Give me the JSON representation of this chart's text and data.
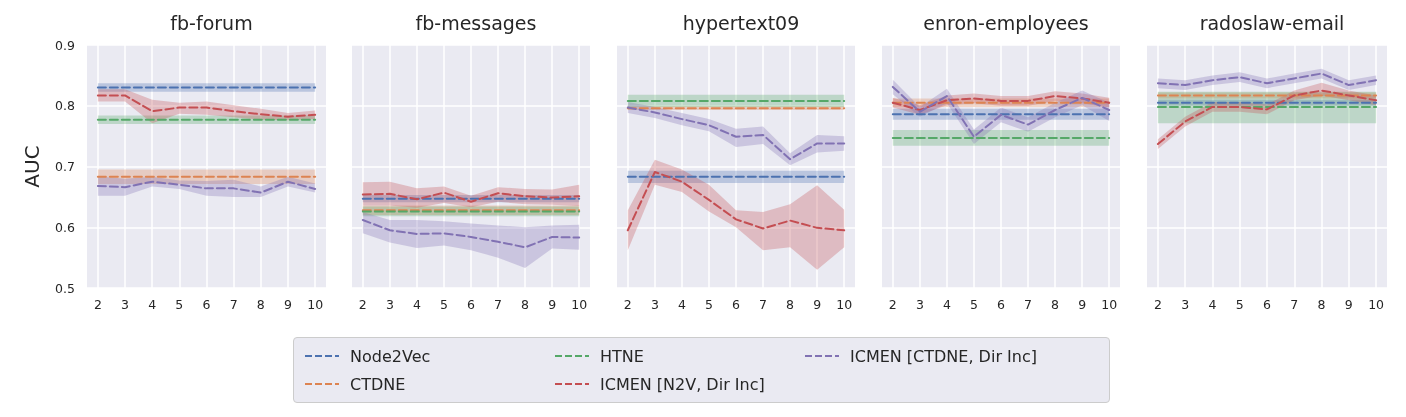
{
  "chart_data": [
    {
      "type": "line",
      "title": "fb-forum",
      "ylabel": "AUC",
      "x": [
        2,
        3,
        4,
        5,
        6,
        7,
        8,
        9,
        10
      ],
      "xlim": [
        1.6,
        10.4
      ],
      "xticks": [
        2,
        3,
        4,
        5,
        6,
        7,
        8,
        9,
        10
      ],
      "ylim": [
        0.5,
        0.9
      ],
      "yticks": [
        0.5,
        0.6,
        0.7,
        0.8,
        0.9
      ],
      "grid": true,
      "line_style": "dashed",
      "legend": "bottom",
      "series": [
        {
          "name": "Node2Vec",
          "color": "#4c72b0",
          "values": [
            0.83,
            0.83,
            0.83,
            0.83,
            0.83,
            0.83,
            0.83,
            0.83,
            0.83
          ],
          "lower": [
            0.823,
            0.823,
            0.823,
            0.823,
            0.823,
            0.823,
            0.823,
            0.823,
            0.823
          ],
          "upper": [
            0.837,
            0.837,
            0.837,
            0.837,
            0.837,
            0.837,
            0.837,
            0.837,
            0.837
          ]
        },
        {
          "name": "CTDNE",
          "color": "#dd8452",
          "values": [
            0.683,
            0.683,
            0.683,
            0.683,
            0.683,
            0.683,
            0.683,
            0.683,
            0.683
          ],
          "lower": [
            0.671,
            0.671,
            0.671,
            0.671,
            0.671,
            0.671,
            0.671,
            0.671,
            0.671
          ],
          "upper": [
            0.695,
            0.695,
            0.695,
            0.695,
            0.695,
            0.695,
            0.695,
            0.695,
            0.695
          ]
        },
        {
          "name": "HTNE",
          "color": "#55a868",
          "values": [
            0.777,
            0.777,
            0.777,
            0.777,
            0.777,
            0.777,
            0.777,
            0.777,
            0.777
          ],
          "lower": [
            0.77,
            0.77,
            0.77,
            0.77,
            0.77,
            0.77,
            0.77,
            0.77,
            0.77
          ],
          "upper": [
            0.784,
            0.784,
            0.784,
            0.784,
            0.784,
            0.784,
            0.784,
            0.784,
            0.784
          ]
        },
        {
          "name": "ICMEN [N2V, Dir Inc]",
          "color": "#c44e52",
          "values": [
            0.817,
            0.817,
            0.791,
            0.797,
            0.797,
            0.791,
            0.786,
            0.782,
            0.785
          ],
          "lower": [
            0.807,
            0.807,
            0.771,
            0.787,
            0.785,
            0.781,
            0.777,
            0.776,
            0.778
          ],
          "upper": [
            0.827,
            0.827,
            0.81,
            0.805,
            0.807,
            0.801,
            0.795,
            0.788,
            0.792
          ]
        },
        {
          "name": "ICMEN [CTDNE, Dir Inc]",
          "color": "#8172b3",
          "values": [
            0.668,
            0.666,
            0.675,
            0.67,
            0.664,
            0.664,
            0.657,
            0.675,
            0.663
          ],
          "lower": [
            0.652,
            0.652,
            0.667,
            0.663,
            0.652,
            0.65,
            0.65,
            0.667,
            0.657
          ],
          "upper": [
            0.684,
            0.68,
            0.683,
            0.677,
            0.676,
            0.678,
            0.667,
            0.683,
            0.672
          ]
        }
      ]
    },
    {
      "type": "line",
      "title": "fb-messages",
      "x": [
        2,
        3,
        4,
        5,
        6,
        7,
        8,
        9,
        10
      ],
      "xlim": [
        1.6,
        10.4
      ],
      "xticks": [
        2,
        3,
        4,
        5,
        6,
        7,
        8,
        9,
        10
      ],
      "ylim": [
        0.5,
        0.9
      ],
      "yticks": [
        0.5,
        0.6,
        0.7,
        0.8,
        0.9
      ],
      "tick_labels": "x",
      "grid": true,
      "line_style": "dashed",
      "series": [
        {
          "color": "#4c72b0",
          "values": [
            0.647,
            0.647,
            0.647,
            0.647,
            0.647,
            0.647,
            0.647,
            0.647,
            0.647
          ],
          "lower": [
            0.641,
            0.641,
            0.641,
            0.641,
            0.641,
            0.641,
            0.641,
            0.641,
            0.641
          ],
          "upper": [
            0.653,
            0.653,
            0.653,
            0.653,
            0.653,
            0.653,
            0.653,
            0.653,
            0.653
          ]
        },
        {
          "color": "#dd8452",
          "values": [
            0.628,
            0.628,
            0.628,
            0.628,
            0.628,
            0.628,
            0.628,
            0.628,
            0.628
          ],
          "lower": [
            0.62,
            0.62,
            0.62,
            0.62,
            0.62,
            0.62,
            0.62,
            0.62,
            0.62
          ],
          "upper": [
            0.636,
            0.636,
            0.636,
            0.636,
            0.636,
            0.636,
            0.636,
            0.636,
            0.636
          ]
        },
        {
          "color": "#55a868",
          "values": [
            0.626,
            0.626,
            0.626,
            0.626,
            0.626,
            0.626,
            0.626,
            0.626,
            0.626
          ],
          "lower": [
            0.618,
            0.618,
            0.618,
            0.618,
            0.618,
            0.618,
            0.618,
            0.618,
            0.618
          ],
          "upper": [
            0.634,
            0.634,
            0.634,
            0.634,
            0.634,
            0.634,
            0.634,
            0.634,
            0.634
          ]
        },
        {
          "color": "#c44e52",
          "values": [
            0.654,
            0.655,
            0.646,
            0.657,
            0.642,
            0.656,
            0.651,
            0.649,
            0.651
          ],
          "lower": [
            0.636,
            0.636,
            0.632,
            0.64,
            0.633,
            0.642,
            0.638,
            0.637,
            0.635
          ],
          "upper": [
            0.674,
            0.675,
            0.664,
            0.667,
            0.652,
            0.666,
            0.663,
            0.662,
            0.67
          ]
        },
        {
          "color": "#8172b3",
          "values": [
            0.612,
            0.595,
            0.589,
            0.59,
            0.584,
            0.576,
            0.567,
            0.584,
            0.583
          ],
          "lower": [
            0.59,
            0.575,
            0.566,
            0.57,
            0.562,
            0.55,
            0.533,
            0.565,
            0.563
          ],
          "upper": [
            0.625,
            0.612,
            0.612,
            0.61,
            0.606,
            0.603,
            0.6,
            0.603,
            0.604
          ]
        }
      ]
    },
    {
      "type": "line",
      "title": "hypertext09",
      "x": [
        2,
        3,
        4,
        5,
        6,
        7,
        8,
        9,
        10
      ],
      "xlim": [
        1.6,
        10.4
      ],
      "xticks": [
        2,
        3,
        4,
        5,
        6,
        7,
        8,
        9,
        10
      ],
      "ylim": [
        0.5,
        0.9
      ],
      "yticks": [
        0.5,
        0.6,
        0.7,
        0.8,
        0.9
      ],
      "tick_labels": "x",
      "grid": true,
      "line_style": "dashed",
      "series": [
        {
          "color": "#4c72b0",
          "values": [
            0.683,
            0.683,
            0.683,
            0.683,
            0.683,
            0.683,
            0.683,
            0.683,
            0.683
          ],
          "lower": [
            0.673,
            0.673,
            0.673,
            0.673,
            0.673,
            0.673,
            0.673,
            0.673,
            0.673
          ],
          "upper": [
            0.693,
            0.693,
            0.693,
            0.693,
            0.693,
            0.693,
            0.693,
            0.693,
            0.693
          ]
        },
        {
          "color": "#dd8452",
          "values": [
            0.796,
            0.796,
            0.796,
            0.796,
            0.796,
            0.796,
            0.796,
            0.796,
            0.796
          ],
          "lower": [
            0.793,
            0.793,
            0.793,
            0.793,
            0.793,
            0.793,
            0.793,
            0.793,
            0.793
          ],
          "upper": [
            0.799,
            0.799,
            0.799,
            0.799,
            0.799,
            0.799,
            0.799,
            0.799,
            0.799
          ]
        },
        {
          "color": "#55a868",
          "values": [
            0.808,
            0.808,
            0.808,
            0.808,
            0.808,
            0.808,
            0.808,
            0.808,
            0.808
          ],
          "lower": [
            0.798,
            0.798,
            0.798,
            0.798,
            0.798,
            0.798,
            0.798,
            0.798,
            0.798
          ],
          "upper": [
            0.818,
            0.818,
            0.818,
            0.818,
            0.818,
            0.818,
            0.818,
            0.818,
            0.818
          ]
        },
        {
          "color": "#c44e52",
          "values": [
            0.595,
            0.691,
            0.675,
            0.645,
            0.613,
            0.598,
            0.611,
            0.599,
            0.595
          ],
          "lower": [
            0.562,
            0.67,
            0.658,
            0.626,
            0.6,
            0.562,
            0.567,
            0.53,
            0.567
          ],
          "upper": [
            0.628,
            0.711,
            0.695,
            0.67,
            0.628,
            0.625,
            0.638,
            0.669,
            0.629
          ]
        },
        {
          "color": "#8172b3",
          "values": [
            0.797,
            0.789,
            0.778,
            0.768,
            0.749,
            0.752,
            0.712,
            0.738,
            0.738
          ],
          "lower": [
            0.788,
            0.78,
            0.768,
            0.758,
            0.732,
            0.737,
            0.702,
            0.723,
            0.726
          ],
          "upper": [
            0.806,
            0.798,
            0.788,
            0.778,
            0.762,
            0.766,
            0.722,
            0.752,
            0.75
          ]
        }
      ]
    },
    {
      "type": "line",
      "title": "enron-employees",
      "x": [
        2,
        3,
        4,
        5,
        6,
        7,
        8,
        9,
        10
      ],
      "xlim": [
        1.6,
        10.4
      ],
      "xticks": [
        2,
        3,
        4,
        5,
        6,
        7,
        8,
        9,
        10
      ],
      "ylim": [
        0.5,
        0.9
      ],
      "yticks": [
        0.5,
        0.6,
        0.7,
        0.8,
        0.9
      ],
      "tick_labels": "x",
      "grid": true,
      "line_style": "dashed",
      "series": [
        {
          "color": "#4c72b0",
          "values": [
            0.786,
            0.786,
            0.786,
            0.786,
            0.786,
            0.786,
            0.786,
            0.786,
            0.786
          ],
          "lower": [
            0.777,
            0.777,
            0.777,
            0.777,
            0.777,
            0.777,
            0.777,
            0.777,
            0.777
          ],
          "upper": [
            0.795,
            0.795,
            0.795,
            0.795,
            0.795,
            0.795,
            0.795,
            0.795,
            0.795
          ]
        },
        {
          "color": "#dd8452",
          "values": [
            0.805,
            0.805,
            0.805,
            0.805,
            0.805,
            0.805,
            0.805,
            0.805,
            0.805
          ],
          "lower": [
            0.798,
            0.798,
            0.798,
            0.798,
            0.798,
            0.798,
            0.798,
            0.798,
            0.798
          ],
          "upper": [
            0.812,
            0.812,
            0.812,
            0.812,
            0.812,
            0.812,
            0.812,
            0.812,
            0.812
          ]
        },
        {
          "color": "#55a868",
          "values": [
            0.747,
            0.747,
            0.747,
            0.747,
            0.747,
            0.747,
            0.747,
            0.747,
            0.747
          ],
          "lower": [
            0.734,
            0.734,
            0.734,
            0.734,
            0.734,
            0.734,
            0.734,
            0.734,
            0.734
          ],
          "upper": [
            0.76,
            0.76,
            0.76,
            0.76,
            0.76,
            0.76,
            0.76,
            0.76,
            0.76
          ]
        },
        {
          "color": "#c44e52",
          "values": [
            0.805,
            0.793,
            0.809,
            0.812,
            0.808,
            0.808,
            0.816,
            0.812,
            0.805
          ],
          "lower": [
            0.797,
            0.785,
            0.801,
            0.804,
            0.8,
            0.8,
            0.808,
            0.804,
            0.797
          ],
          "upper": [
            0.813,
            0.801,
            0.817,
            0.82,
            0.816,
            0.816,
            0.824,
            0.82,
            0.813
          ]
        },
        {
          "color": "#8172b3",
          "values": [
            0.831,
            0.79,
            0.816,
            0.749,
            0.785,
            0.769,
            0.793,
            0.813,
            0.793
          ],
          "lower": [
            0.819,
            0.782,
            0.804,
            0.737,
            0.773,
            0.757,
            0.781,
            0.801,
            0.775
          ],
          "upper": [
            0.843,
            0.798,
            0.828,
            0.761,
            0.797,
            0.781,
            0.805,
            0.825,
            0.805
          ]
        }
      ]
    },
    {
      "type": "line",
      "title": "radoslaw-email",
      "x": [
        2,
        3,
        4,
        5,
        6,
        7,
        8,
        9,
        10
      ],
      "xlim": [
        1.6,
        10.4
      ],
      "xticks": [
        2,
        3,
        4,
        5,
        6,
        7,
        8,
        9,
        10
      ],
      "ylim": [
        0.5,
        0.9
      ],
      "yticks": [
        0.5,
        0.6,
        0.7,
        0.8,
        0.9
      ],
      "tick_labels": "x",
      "grid": true,
      "line_style": "dashed",
      "series": [
        {
          "color": "#4c72b0",
          "values": [
            0.805,
            0.805,
            0.805,
            0.805,
            0.805,
            0.805,
            0.805,
            0.805,
            0.805
          ],
          "lower": [
            0.8,
            0.8,
            0.8,
            0.8,
            0.8,
            0.8,
            0.8,
            0.8,
            0.8
          ],
          "upper": [
            0.81,
            0.81,
            0.81,
            0.81,
            0.81,
            0.81,
            0.81,
            0.81,
            0.81
          ]
        },
        {
          "color": "#dd8452",
          "values": [
            0.817,
            0.817,
            0.817,
            0.817,
            0.817,
            0.817,
            0.817,
            0.817,
            0.817
          ],
          "lower": [
            0.812,
            0.812,
            0.812,
            0.812,
            0.812,
            0.812,
            0.812,
            0.812,
            0.812
          ],
          "upper": [
            0.822,
            0.822,
            0.822,
            0.822,
            0.822,
            0.822,
            0.822,
            0.822,
            0.822
          ]
        },
        {
          "color": "#55a868",
          "values": [
            0.798,
            0.798,
            0.798,
            0.798,
            0.798,
            0.798,
            0.798,
            0.798,
            0.798
          ],
          "lower": [
            0.771,
            0.771,
            0.771,
            0.771,
            0.771,
            0.771,
            0.771,
            0.771,
            0.771
          ],
          "upper": [
            0.823,
            0.823,
            0.823,
            0.823,
            0.823,
            0.823,
            0.823,
            0.823,
            0.823
          ]
        },
        {
          "color": "#c44e52",
          "values": [
            0.737,
            0.774,
            0.798,
            0.798,
            0.794,
            0.817,
            0.825,
            0.817,
            0.809
          ],
          "lower": [
            0.729,
            0.766,
            0.79,
            0.79,
            0.786,
            0.809,
            0.817,
            0.809,
            0.801
          ],
          "upper": [
            0.745,
            0.782,
            0.806,
            0.806,
            0.802,
            0.825,
            0.838,
            0.825,
            0.817
          ]
        },
        {
          "color": "#8172b3",
          "values": [
            0.837,
            0.834,
            0.842,
            0.847,
            0.837,
            0.845,
            0.853,
            0.834,
            0.842
          ],
          "lower": [
            0.829,
            0.826,
            0.834,
            0.839,
            0.829,
            0.837,
            0.845,
            0.826,
            0.834
          ],
          "upper": [
            0.845,
            0.842,
            0.85,
            0.855,
            0.845,
            0.853,
            0.861,
            0.842,
            0.85
          ]
        }
      ]
    }
  ]
}
